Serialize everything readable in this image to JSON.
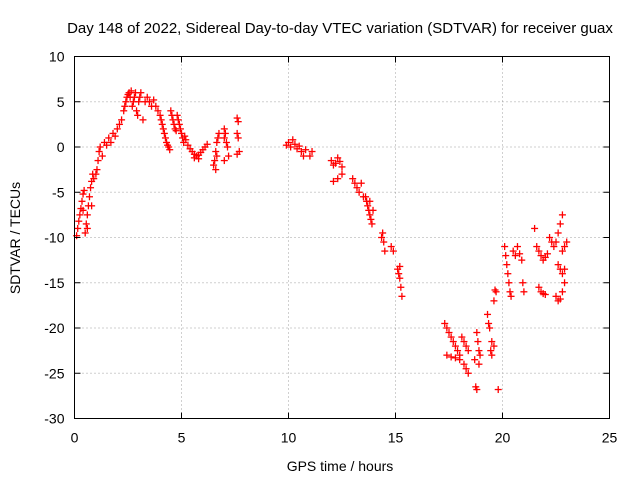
{
  "chart_data": {
    "type": "scatter",
    "title": "Day 148 of 2022, Sidereal Day-to-day VTEC variation (SDTVAR) for receiver guax",
    "xlabel": "GPS time / hours",
    "ylabel": "SDTVAR / TECUs",
    "xlim": [
      0,
      25
    ],
    "ylim": [
      -30,
      10
    ],
    "xticks": [
      0,
      5,
      10,
      15,
      20,
      25
    ],
    "yticks": [
      -30,
      -25,
      -20,
      -15,
      -10,
      -5,
      0,
      5,
      10
    ],
    "xtick_labels": [
      "0",
      "5",
      "10",
      "15",
      "20",
      "25"
    ],
    "ytick_labels": [
      "-30",
      "-25",
      "-20",
      "-15",
      "-10",
      "-5",
      "0",
      "5",
      "10"
    ],
    "grid": true,
    "marker": "+",
    "color": "#ff0000",
    "series": [
      {
        "name": "SDTVAR",
        "points": [
          [
            0.1,
            -9.8
          ],
          [
            0.15,
            -9.0
          ],
          [
            0.2,
            -8.2
          ],
          [
            0.25,
            -7.5
          ],
          [
            0.3,
            -6.8
          ],
          [
            0.35,
            -6.0
          ],
          [
            0.4,
            -5.2
          ],
          [
            0.45,
            -4.8
          ],
          [
            0.5,
            -9.5
          ],
          [
            0.55,
            -8.5
          ],
          [
            0.6,
            -7.5
          ],
          [
            0.65,
            -6.5
          ],
          [
            0.7,
            -5.5
          ],
          [
            0.75,
            -4.5
          ],
          [
            0.8,
            -3.8
          ],
          [
            0.85,
            -3.0
          ],
          [
            0.4,
            -7.0
          ],
          [
            0.6,
            -9.0
          ],
          [
            0.8,
            -6.5
          ],
          [
            0.9,
            -3.5
          ],
          [
            1.0,
            -3.0
          ],
          [
            1.05,
            -2.5
          ],
          [
            1.1,
            -1.5
          ],
          [
            1.15,
            -0.5
          ],
          [
            1.2,
            0.0
          ],
          [
            1.3,
            -1.0
          ],
          [
            1.4,
            0.5
          ],
          [
            1.5,
            0.2
          ],
          [
            1.6,
            1.0
          ],
          [
            1.7,
            0.5
          ],
          [
            1.8,
            1.5
          ],
          [
            1.9,
            1.2
          ],
          [
            2.0,
            2.0
          ],
          [
            2.1,
            2.5
          ],
          [
            2.2,
            3.0
          ],
          [
            2.3,
            4.0
          ],
          [
            2.35,
            4.5
          ],
          [
            2.4,
            5.0
          ],
          [
            2.45,
            5.5
          ],
          [
            2.5,
            5.8
          ],
          [
            2.55,
            6.0
          ],
          [
            2.6,
            5.5
          ],
          [
            2.65,
            6.2
          ],
          [
            2.7,
            4.5
          ],
          [
            2.75,
            5.0
          ],
          [
            2.8,
            5.5
          ],
          [
            2.85,
            6.0
          ],
          [
            2.9,
            4.0
          ],
          [
            2.95,
            3.5
          ],
          [
            3.0,
            5.0
          ],
          [
            3.05,
            5.5
          ],
          [
            3.1,
            6.0
          ],
          [
            3.2,
            3.0
          ],
          [
            3.3,
            5.0
          ],
          [
            3.4,
            5.5
          ],
          [
            3.5,
            5.0
          ],
          [
            3.6,
            4.5
          ],
          [
            3.7,
            5.2
          ],
          [
            3.8,
            4.5
          ],
          [
            3.9,
            4.0
          ],
          [
            4.0,
            3.5
          ],
          [
            4.05,
            3.0
          ],
          [
            4.1,
            2.5
          ],
          [
            4.15,
            2.0
          ],
          [
            4.2,
            1.5
          ],
          [
            4.25,
            1.0
          ],
          [
            4.3,
            0.5
          ],
          [
            4.35,
            0.2
          ],
          [
            4.4,
            0.0
          ],
          [
            4.45,
            -0.3
          ],
          [
            4.5,
            4.0
          ],
          [
            4.55,
            3.5
          ],
          [
            4.6,
            3.0
          ],
          [
            4.65,
            2.5
          ],
          [
            4.7,
            2.0
          ],
          [
            4.75,
            1.8
          ],
          [
            4.8,
            3.5
          ],
          [
            4.85,
            3.0
          ],
          [
            4.9,
            2.5
          ],
          [
            4.95,
            2.0
          ],
          [
            5.0,
            1.5
          ],
          [
            5.05,
            1.0
          ],
          [
            5.1,
            0.5
          ],
          [
            5.15,
            1.2
          ],
          [
            5.2,
            0.8
          ],
          [
            5.3,
            0.2
          ],
          [
            5.4,
            -0.2
          ],
          [
            5.5,
            -0.5
          ],
          [
            5.6,
            -0.8
          ],
          [
            5.7,
            -1.0
          ],
          [
            5.8,
            -0.9
          ],
          [
            5.9,
            -0.6
          ],
          [
            6.0,
            -0.3
          ],
          [
            6.1,
            0.0
          ],
          [
            6.2,
            0.3
          ],
          [
            5.8,
            -1.3
          ],
          [
            5.6,
            -1.2
          ],
          [
            6.5,
            -2.0
          ],
          [
            6.55,
            -1.5
          ],
          [
            6.6,
            -0.5
          ],
          [
            6.65,
            0.5
          ],
          [
            6.7,
            1.0
          ],
          [
            6.75,
            1.5
          ],
          [
            6.6,
            -2.5
          ],
          [
            6.65,
            -1.0
          ],
          [
            7.0,
            2.0
          ],
          [
            7.05,
            1.5
          ],
          [
            7.1,
            0.5
          ],
          [
            7.15,
            0.0
          ],
          [
            7.2,
            -1.0
          ],
          [
            7.0,
            -1.5
          ],
          [
            7.0,
            1.0
          ],
          [
            7.6,
            3.2
          ],
          [
            7.65,
            2.8
          ],
          [
            7.6,
            1.5
          ],
          [
            7.65,
            1.0
          ],
          [
            7.7,
            -0.5
          ],
          [
            7.6,
            -0.8
          ],
          [
            9.9,
            0.2
          ],
          [
            10.0,
            0.5
          ],
          [
            10.1,
            0.0
          ],
          [
            10.2,
            0.8
          ],
          [
            10.3,
            0.3
          ],
          [
            10.4,
            -0.2
          ],
          [
            10.5,
            0.1
          ],
          [
            10.6,
            -0.5
          ],
          [
            10.7,
            -1.0
          ],
          [
            10.8,
            -0.3
          ],
          [
            11.0,
            -1.0
          ],
          [
            11.1,
            -0.5
          ],
          [
            12.0,
            -1.5
          ],
          [
            12.1,
            -2.0
          ],
          [
            12.2,
            -1.8
          ],
          [
            12.3,
            -1.2
          ],
          [
            12.4,
            -1.6
          ],
          [
            12.5,
            -2.2
          ],
          [
            12.3,
            -3.5
          ],
          [
            12.1,
            -3.8
          ],
          [
            12.5,
            -3.0
          ],
          [
            13.0,
            -3.5
          ],
          [
            13.1,
            -4.0
          ],
          [
            13.2,
            -4.5
          ],
          [
            13.3,
            -5.0
          ],
          [
            13.4,
            -4.0
          ],
          [
            13.5,
            -5.5
          ],
          [
            13.6,
            -5.5
          ],
          [
            13.65,
            -6.0
          ],
          [
            13.7,
            -6.5
          ],
          [
            13.75,
            -7.0
          ],
          [
            13.8,
            -7.5
          ],
          [
            13.85,
            -8.0
          ],
          [
            13.9,
            -8.5
          ],
          [
            13.95,
            -7.0
          ],
          [
            13.8,
            -6.0
          ],
          [
            14.4,
            -9.5
          ],
          [
            14.45,
            -10.5
          ],
          [
            14.5,
            -11.5
          ],
          [
            14.35,
            -10.0
          ],
          [
            14.8,
            -11.0
          ],
          [
            14.9,
            -11.5
          ],
          [
            15.1,
            -13.5
          ],
          [
            15.15,
            -14.0
          ],
          [
            15.2,
            -14.5
          ],
          [
            15.25,
            -15.5
          ],
          [
            15.3,
            -16.5
          ],
          [
            15.2,
            -13.2
          ],
          [
            17.3,
            -19.5
          ],
          [
            17.4,
            -20.0
          ],
          [
            17.5,
            -20.5
          ],
          [
            17.6,
            -21.0
          ],
          [
            17.7,
            -21.5
          ],
          [
            17.8,
            -22.0
          ],
          [
            17.9,
            -22.5
          ],
          [
            18.0,
            -23.0
          ],
          [
            17.4,
            -23.0
          ],
          [
            17.6,
            -23.2
          ],
          [
            17.8,
            -23.3
          ],
          [
            18.0,
            -23.5
          ],
          [
            18.2,
            -24.0
          ],
          [
            18.3,
            -24.5
          ],
          [
            18.4,
            -25.0
          ],
          [
            18.1,
            -21.0
          ],
          [
            18.2,
            -21.5
          ],
          [
            18.3,
            -22.0
          ],
          [
            18.4,
            -22.5
          ],
          [
            18.8,
            -20.5
          ],
          [
            18.85,
            -21.5
          ],
          [
            18.9,
            -22.5
          ],
          [
            18.95,
            -23.0
          ],
          [
            18.9,
            -24.0
          ],
          [
            18.7,
            -23.5
          ],
          [
            18.75,
            -26.5
          ],
          [
            18.8,
            -26.8
          ],
          [
            19.3,
            -18.5
          ],
          [
            19.35,
            -19.5
          ],
          [
            19.4,
            -20.0
          ],
          [
            19.5,
            -21.5
          ],
          [
            19.45,
            -22.5
          ],
          [
            19.6,
            -22.0
          ],
          [
            19.5,
            -23.0
          ],
          [
            19.6,
            -17.0
          ],
          [
            19.7,
            -16.0
          ],
          [
            19.65,
            -15.8
          ],
          [
            19.8,
            -26.8
          ],
          [
            20.1,
            -11.0
          ],
          [
            20.15,
            -12.0
          ],
          [
            20.2,
            -13.0
          ],
          [
            20.25,
            -14.0
          ],
          [
            20.3,
            -15.0
          ],
          [
            20.35,
            -16.0
          ],
          [
            20.4,
            -16.5
          ],
          [
            20.5,
            -11.5
          ],
          [
            20.6,
            -12.0
          ],
          [
            20.7,
            -11.0
          ],
          [
            20.8,
            -11.8
          ],
          [
            20.9,
            -12.5
          ],
          [
            20.95,
            -15.0
          ],
          [
            21.0,
            -16.0
          ],
          [
            21.5,
            -9.0
          ],
          [
            21.6,
            -11.0
          ],
          [
            21.7,
            -11.5
          ],
          [
            21.8,
            -12.0
          ],
          [
            21.9,
            -12.5
          ],
          [
            22.0,
            -12.2
          ],
          [
            22.1,
            -11.8
          ],
          [
            21.7,
            -15.5
          ],
          [
            21.8,
            -16.0
          ],
          [
            21.9,
            -16.2
          ],
          [
            22.0,
            -16.3
          ],
          [
            22.2,
            -10.0
          ],
          [
            22.3,
            -10.5
          ],
          [
            22.4,
            -11.0
          ],
          [
            22.5,
            -10.5
          ],
          [
            22.6,
            -9.5
          ],
          [
            22.7,
            -8.5
          ],
          [
            22.8,
            -7.5
          ],
          [
            22.5,
            -16.5
          ],
          [
            22.6,
            -17.0
          ],
          [
            22.7,
            -16.8
          ],
          [
            22.8,
            -16.0
          ],
          [
            22.9,
            -15.0
          ],
          [
            22.6,
            -13.0
          ],
          [
            22.7,
            -13.5
          ],
          [
            22.8,
            -14.0
          ],
          [
            22.9,
            -13.5
          ],
          [
            22.8,
            -11.5
          ],
          [
            22.9,
            -11.0
          ],
          [
            23.0,
            -10.5
          ]
        ]
      }
    ]
  }
}
